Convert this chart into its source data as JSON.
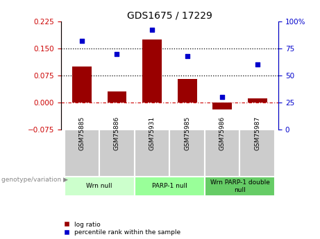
{
  "title": "GDS1675 / 17229",
  "samples": [
    "GSM75885",
    "GSM75886",
    "GSM75931",
    "GSM75985",
    "GSM75986",
    "GSM75987"
  ],
  "log_ratio": [
    0.1,
    0.03,
    0.175,
    0.065,
    -0.02,
    0.01
  ],
  "percentile_rank": [
    82,
    70,
    92,
    68,
    30,
    60
  ],
  "bar_color": "#990000",
  "dot_color": "#0000cc",
  "ylim_left": [
    -0.075,
    0.225
  ],
  "ylim_right": [
    0,
    100
  ],
  "yticks_left": [
    -0.075,
    0,
    0.075,
    0.15,
    0.225
  ],
  "yticks_right": [
    0,
    25,
    50,
    75,
    100
  ],
  "hlines": [
    0.075,
    0.15
  ],
  "zero_line_color": "#cc0000",
  "hline_color": "#000000",
  "cell_color": "#cccccc",
  "groups": [
    {
      "label": "Wrn null",
      "samples": [
        "GSM75885",
        "GSM75886"
      ],
      "color": "#ccffcc"
    },
    {
      "label": "PARP-1 null",
      "samples": [
        "GSM75931",
        "GSM75985"
      ],
      "color": "#99ff99"
    },
    {
      "label": "Wrn PARP-1 double\nnull",
      "samples": [
        "GSM75986",
        "GSM75987"
      ],
      "color": "#66cc66"
    }
  ],
  "genotype_label": "genotype/variation",
  "legend_log_ratio": "log ratio",
  "legend_percentile": "percentile rank within the sample",
  "title_fontsize": 10,
  "tick_fontsize": 7.5,
  "label_fontsize": 7,
  "bar_width": 0.55
}
